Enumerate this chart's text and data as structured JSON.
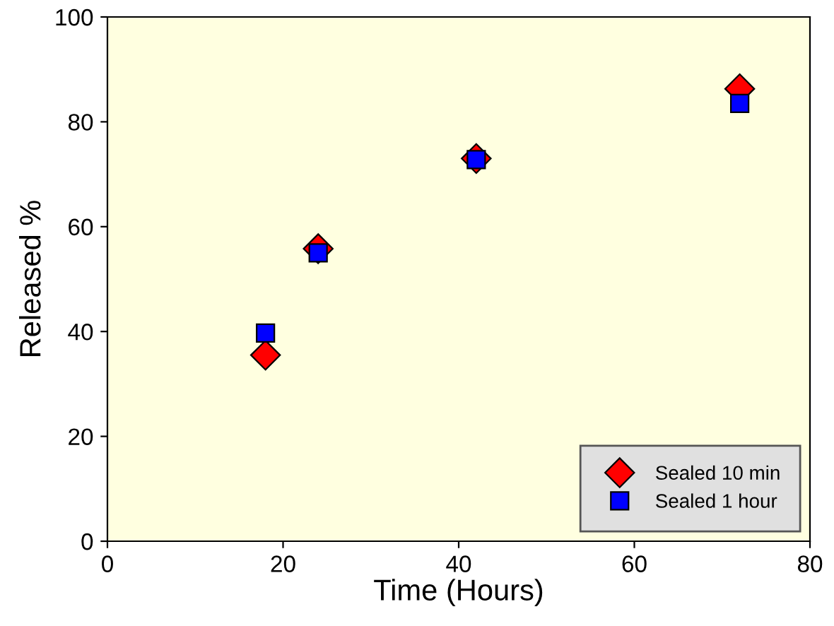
{
  "chart_data": {
    "type": "scatter",
    "xlabel": "Time (Hours)",
    "ylabel": "Released %",
    "x": [
      18,
      24,
      42,
      72
    ],
    "series": [
      {
        "name": "Sealed 10 min",
        "color": "#ff0000",
        "marker": "diamond",
        "values": [
          35.5,
          55.8,
          73,
          86.3
        ]
      },
      {
        "name": "Sealed 1 hour",
        "color": "#0000ff",
        "marker": "square",
        "values": [
          39.7,
          55,
          72.8,
          83.5
        ]
      }
    ],
    "xlim": [
      0,
      80
    ],
    "xticks": [
      0,
      20,
      40,
      60,
      80
    ],
    "ylim": [
      0,
      100
    ],
    "yticks": [
      0,
      20,
      40,
      60,
      80,
      100
    ],
    "grid": false,
    "legend": "bottom right"
  }
}
